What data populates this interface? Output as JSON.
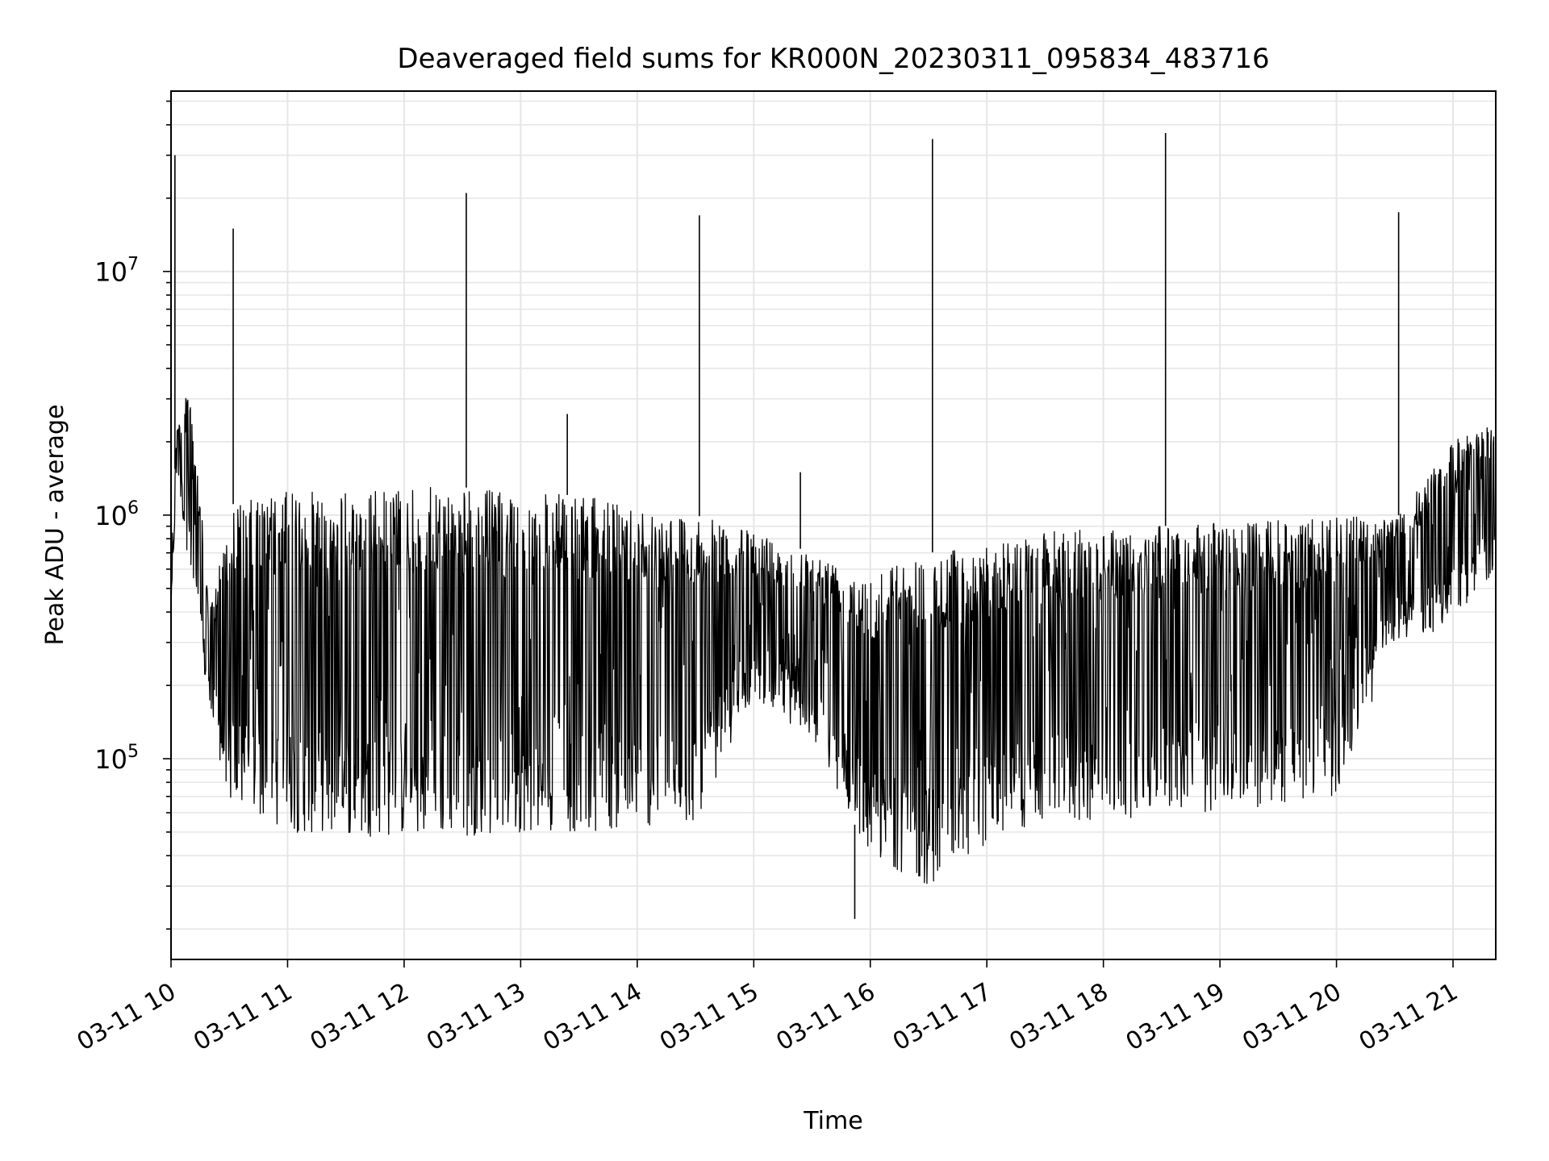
{
  "chart_data": {
    "type": "line",
    "title": "Deaveraged field sums for KR000N_20230311_095834_483716",
    "xlabel": "Time",
    "ylabel": "Peak ADU - average",
    "yscale": "log",
    "xlim": [
      "2023-03-11 10:00",
      "2023-03-11 21:22"
    ],
    "ylim": [
      15000,
      55000000
    ],
    "grid": true,
    "line_color": "#000000",
    "x_tick_labels": [
      "03-11 10",
      "03-11 11",
      "03-11 12",
      "03-11 13",
      "03-11 14",
      "03-11 15",
      "03-11 16",
      "03-11 17",
      "03-11 18",
      "03-11 19",
      "03-11 20",
      "03-11 21"
    ],
    "y_tick_labels": [
      {
        "value": 100000,
        "base": "10",
        "exp": "5"
      },
      {
        "value": 1000000,
        "base": "10",
        "exp": "6"
      },
      {
        "value": 10000000,
        "base": "10",
        "exp": "7"
      }
    ],
    "series": [
      {
        "note_only_for_structure": "",
        "envelope": [
          {
            "x": "2023-03-11 10:00",
            "low": 380000,
            "high": 700000
          },
          {
            "x": "2023-03-11 10:03",
            "low": 1500000,
            "high": 2300000
          },
          {
            "x": "2023-03-11 10:10",
            "low": 550000,
            "high": 3500000
          },
          {
            "x": "2023-03-11 10:20",
            "low": 150000,
            "high": 400000
          },
          {
            "x": "2023-03-11 10:30",
            "low": 65000,
            "high": 1100000
          },
          {
            "x": "2023-03-11 11:00",
            "low": 50000,
            "high": 1250000
          },
          {
            "x": "2023-03-11 11:30",
            "low": 48000,
            "high": 1250000
          },
          {
            "x": "2023-03-11 12:00",
            "low": 48000,
            "high": 1300000
          },
          {
            "x": "2023-03-11 12:30",
            "low": 48000,
            "high": 1300000
          },
          {
            "x": "2023-03-11 13:00",
            "low": 50000,
            "high": 1250000
          },
          {
            "x": "2023-03-11 13:30",
            "low": 50000,
            "high": 1200000
          },
          {
            "x": "2023-03-11 14:00",
            "low": 52000,
            "high": 1100000
          },
          {
            "x": "2023-03-11 14:30",
            "low": 55000,
            "high": 1000000
          },
          {
            "x": "2023-03-11 15:00",
            "low": 180000,
            "high": 850000
          },
          {
            "x": "2023-03-11 15:30",
            "low": 120000,
            "high": 700000
          },
          {
            "x": "2023-03-11 16:00",
            "low": 40000,
            "high": 600000
          },
          {
            "x": "2023-03-11 16:30",
            "low": 30000,
            "high": 700000
          },
          {
            "x": "2023-03-11 17:00",
            "low": 45000,
            "high": 750000
          },
          {
            "x": "2023-03-11 17:30",
            "low": 55000,
            "high": 850000
          },
          {
            "x": "2023-03-11 18:00",
            "low": 55000,
            "high": 900000
          },
          {
            "x": "2023-03-11 18:30",
            "low": 60000,
            "high": 900000
          },
          {
            "x": "2023-03-11 19:00",
            "low": 60000,
            "high": 950000
          },
          {
            "x": "2023-03-11 19:30",
            "low": 65000,
            "high": 950000
          },
          {
            "x": "2023-03-11 20:00",
            "low": 70000,
            "high": 1000000
          },
          {
            "x": "2023-03-11 20:30",
            "low": 300000,
            "high": 950000
          },
          {
            "x": "2023-03-11 21:00",
            "low": 350000,
            "high": 2000000
          },
          {
            "x": "2023-03-11 21:22",
            "low": 600000,
            "high": 2500000
          }
        ],
        "spikes": [
          {
            "x": "2023-03-11 10:02",
            "y": 30000000
          },
          {
            "x": "2023-03-11 10:32",
            "y": 15000000
          },
          {
            "x": "2023-03-11 12:32",
            "y": 21000000
          },
          {
            "x": "2023-03-11 13:24",
            "y": 2600000
          },
          {
            "x": "2023-03-11 14:32",
            "y": 17000000
          },
          {
            "x": "2023-03-11 15:24",
            "y": 1500000
          },
          {
            "x": "2023-03-11 15:52",
            "y": 22000
          },
          {
            "x": "2023-03-11 16:32",
            "y": 35000000
          },
          {
            "x": "2023-03-11 18:32",
            "y": 37000000
          },
          {
            "x": "2023-03-11 20:32",
            "y": 17500000
          }
        ]
      }
    ]
  }
}
